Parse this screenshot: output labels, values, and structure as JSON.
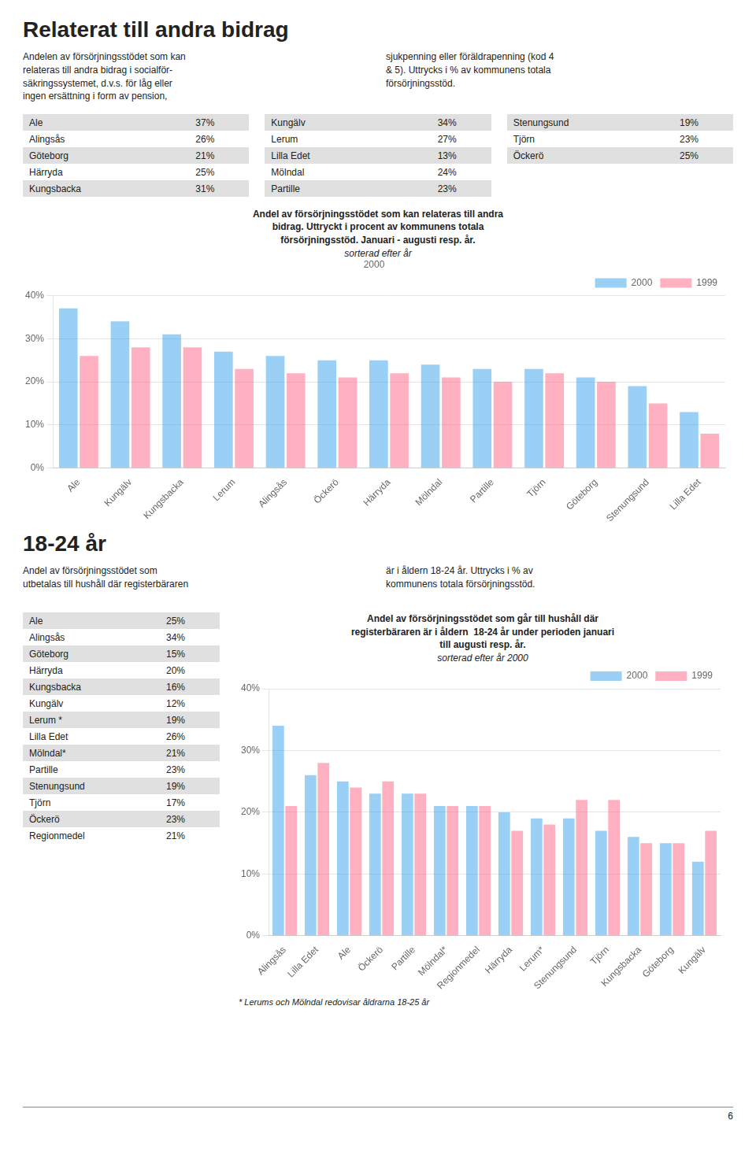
{
  "sections": [
    {
      "heading": "Relaterat till andra bidrag",
      "body": [
        "Andelen av försörjningsstödet som kan\nrelateras till andra bidrag i socialför-\nsäkringssystemet, d.v.s. för låg eller\ningen ersättning i form av pension,",
        "sjukpenning eller föräldrapenning (kod 4\n& 5). Uttrycks i % av kommunens totala\nförsörjningsstöd."
      ],
      "table": [
        [
          "Ale",
          "37%",
          "Kungälv",
          "34%",
          "Stenungsund",
          "19%"
        ],
        [
          "Alingsås",
          "26%",
          "Lerum",
          "27%",
          "Tjörn",
          "23%"
        ],
        [
          "Göteborg",
          "21%",
          "Lilla Edet",
          "13%",
          "Öckerö",
          "25%"
        ],
        [
          "Härryda",
          "25%",
          "Mölndal",
          "24%"
        ],
        [
          "Kungsbacka",
          "31%",
          "Partille",
          "23%"
        ]
      ]
    },
    {
      "heading": "18-24 år",
      "body": [
        "Andel av försörjningsstödet som\nutbetalas till hushåll där registerbäraren",
        "är i åldern 18-24 år. Uttrycks i % av\nkommunens totala försörjningsstöd."
      ],
      "table": [
        [
          "Ale",
          "25%"
        ],
        [
          "Alingsås",
          "34%"
        ],
        [
          "Göteborg",
          "15%"
        ],
        [
          "Härryda",
          "20%"
        ],
        [
          "Kungsbacka",
          "16%"
        ],
        [
          "Kungälv",
          "12%"
        ],
        [
          "Lerum *",
          "19%"
        ],
        [
          "Lilla Edet",
          "26%"
        ],
        [
          "Mölndal*",
          "21%"
        ],
        [
          "Partille",
          "23%"
        ],
        [
          "Stenungsund",
          "19%"
        ],
        [
          "Tjörn",
          "17%"
        ],
        [
          "Öckerö",
          "23%"
        ],
        [
          "Regionmedel",
          "21%"
        ]
      ]
    }
  ],
  "chart_data": [
    {
      "type": "bar",
      "title": [
        "Andel av försörjningsstödet som kan relateras till andra",
        "bidrag. Uttryckt i procent av kommunens totala",
        "försörjningsstöd. Januari - augusti resp. år."
      ],
      "annotations": [
        "sorterad efter år"
      ],
      "subtitle": "2000",
      "categories": [
        "Ale",
        "Kungälv",
        "Kungsbacka",
        "Lerum",
        "Alingsås",
        "Öckerö",
        "Härryda",
        "Mölndal",
        "Partille",
        "Tjörn",
        "Göteborg",
        "Stenungsund",
        "Lilla Edet"
      ],
      "series": [
        {
          "name": "2000",
          "values": [
            37,
            34,
            31,
            27,
            26,
            25,
            25,
            24,
            23,
            23,
            21,
            19,
            13
          ]
        },
        {
          "name": "1999",
          "values": [
            26,
            28,
            28,
            23,
            22,
            21,
            22,
            21,
            20,
            22,
            20,
            15,
            8
          ]
        }
      ],
      "ylim": [
        0,
        40
      ],
      "yticks": [
        {
          "value": 0,
          "label": "0%"
        },
        {
          "value": 10,
          "label": "10%"
        },
        {
          "value": 20,
          "label": "20%"
        },
        {
          "value": 30,
          "label": "30%"
        },
        {
          "value": 40,
          "label": "40%"
        }
      ],
      "grid": true,
      "legend": "upper right"
    },
    {
      "type": "bar",
      "title": [
        "Andel av försörjningsstödet som går till hushåll där",
        "registerbäraren är i åldern  18-24 år under perioden januari",
        "till augusti resp. år."
      ],
      "annotations": [
        "sorterad efter år 2000"
      ],
      "categories": [
        "Alingsås",
        "Lilla Edet",
        "Ale",
        "Öckerö",
        "Partille",
        "Mölndal*",
        "Regionmedel",
        "Härryda",
        "Lerum*",
        "Stenungsund",
        "Tjörn",
        "Kungsbacka",
        "Göteborg",
        "Kungälv"
      ],
      "series": [
        {
          "name": "2000",
          "values": [
            34,
            26,
            25,
            23,
            23,
            21,
            21,
            20,
            19,
            19,
            17,
            16,
            15,
            12
          ]
        },
        {
          "name": "1999",
          "values": [
            21,
            28,
            24,
            25,
            23,
            21,
            21,
            17,
            18,
            22,
            22,
            15,
            15,
            17
          ]
        }
      ],
      "ylim": [
        0,
        40
      ],
      "yticks": [
        {
          "value": 0,
          "label": "0%"
        },
        {
          "value": 10,
          "label": "10%"
        },
        {
          "value": 20,
          "label": "20%"
        },
        {
          "value": 30,
          "label": "30%"
        },
        {
          "value": 40,
          "label": "40%"
        }
      ],
      "grid": true,
      "legend": "upper right",
      "footnote": "* Lerums och Mölndal redovisar åldrarna 18-25 år"
    }
  ],
  "page_number": "6"
}
